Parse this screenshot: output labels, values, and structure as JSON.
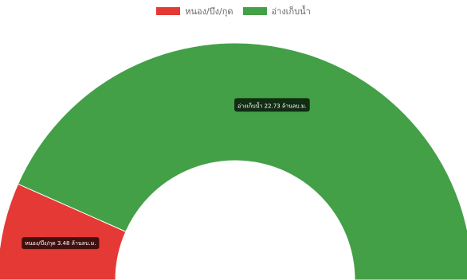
{
  "chart_data": {
    "type": "pie",
    "variant": "half-doughnut",
    "legend_position": "top-center",
    "unit": "ล้านลบ.ม.",
    "slices": [
      {
        "label": "หนอง/บึง/กุด",
        "value": 3.48,
        "color": "#e53935",
        "tooltip": "หนอง/บึง/กุด 3.48 ล้านลบ.ม."
      },
      {
        "label": "อ่างเก็บน้ำ",
        "value": 22.73,
        "color": "#43a047",
        "tooltip": "อ่างเก็บน้ำ 22.73 ล้านลบ.ม."
      }
    ]
  }
}
